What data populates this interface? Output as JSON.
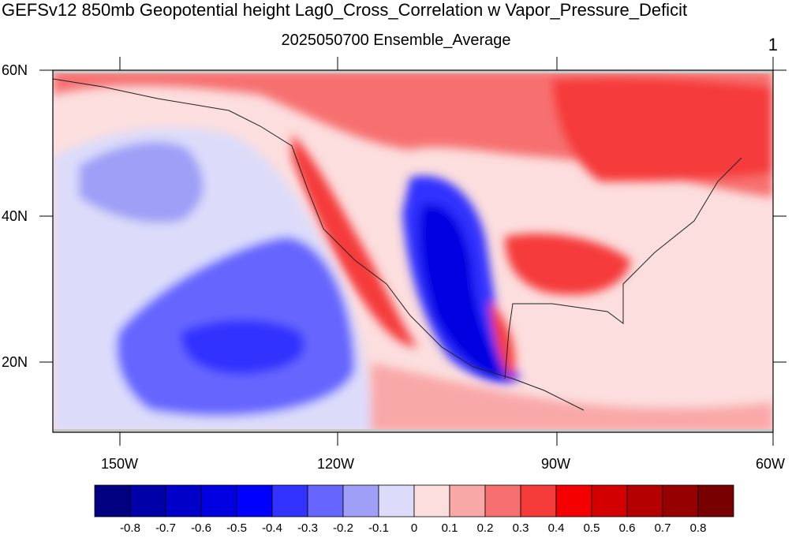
{
  "title": "GEFSv12 850mb Geopotential height Lag0_Cross_Correlation w Vapor_Pressure_Deficit",
  "subtitle": "2025050700 Ensemble_Average",
  "panel_label": "1",
  "lat_labels": [
    "60N",
    "40N",
    "20N"
  ],
  "lon_labels": [
    "150W",
    "120W",
    "90W",
    "60W"
  ],
  "colorbar": {
    "labels": [
      "-0.8",
      "-0.7",
      "-0.6",
      "-0.5",
      "-0.4",
      "-0.3",
      "-0.2",
      "-0.1",
      "0",
      "0.1",
      "0.2",
      "0.3",
      "0.4",
      "0.5",
      "0.6",
      "0.7",
      "0.8"
    ],
    "colors": [
      "#000080",
      "#0000a8",
      "#0000c8",
      "#0000e0",
      "#0000ff",
      "#3333ff",
      "#6666ff",
      "#9f9ff7",
      "#dcdcfa",
      "#fcdede",
      "#f9a8a8",
      "#f77070",
      "#f53a3a",
      "#f50000",
      "#d20000",
      "#b40000",
      "#960000",
      "#780000"
    ]
  }
}
